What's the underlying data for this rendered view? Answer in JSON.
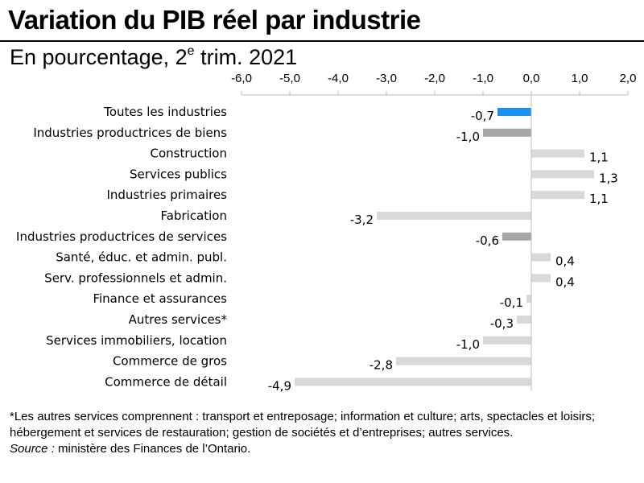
{
  "title": "Variation du PIB réel par industrie",
  "subtitle": {
    "prefix": "En pourcentage, 2",
    "superscript": "e",
    "suffix": " trim. 2021"
  },
  "colors": {
    "highlight": "#1e90ea",
    "aggregate": "#a6a6a6",
    "industry": "#d9d9d9",
    "axis": "#bfbfbf"
  },
  "chart_data": {
    "type": "bar",
    "orientation": "horizontal",
    "title": "Variation du PIB réel par industrie",
    "xlabel": "",
    "ylabel": "",
    "xlim": [
      -6.0,
      2.0
    ],
    "x_ticks": [
      "-6,0",
      "-5,0",
      "-4,0",
      "-3,0",
      "-2,0",
      "-1,0",
      "0,0",
      "1,0",
      "2,0"
    ],
    "x_tick_values": [
      -6,
      -5,
      -4,
      -3,
      -2,
      -1,
      0,
      1,
      2
    ],
    "grid": false,
    "legend": "none",
    "categories": [
      "Toutes les industries",
      "Industries productrices de biens",
      "Construction",
      "Services publics",
      "Industries primaires",
      "Fabrication",
      "Industries productrices de services",
      "Santé, éduc. et admin. publ.",
      "Serv. professionnels et admin.",
      "Finance et assurances",
      "Autres services*",
      "Services immobiliers, location",
      "Commerce de gros",
      "Commerce de détail"
    ],
    "values": [
      -0.7,
      -1.0,
      1.1,
      1.3,
      1.1,
      -3.2,
      -0.6,
      0.4,
      0.4,
      -0.1,
      -0.3,
      -1.0,
      -2.8,
      -4.9
    ],
    "value_labels": [
      "-0,7",
      "-1,0",
      "1,1",
      "1,3",
      "1,1",
      "-3,2",
      "-0,6",
      "0,4",
      "0,4",
      "-0,1",
      "-0,3",
      "-1,0",
      "-2,8",
      "-4,9"
    ],
    "bar_kind": [
      "highlight",
      "aggregate",
      "industry",
      "industry",
      "industry",
      "industry",
      "aggregate",
      "industry",
      "industry",
      "industry",
      "industry",
      "industry",
      "industry",
      "industry"
    ]
  },
  "footnote": {
    "text": "*Les autres services comprennent  : transport et entreposage; information et culture; arts, spectacles et loisirs; hébergement  et services de restauration; gestion de sociétés et d’entreprises; autres services.",
    "source_label": "Source :",
    "source_text": " ministère des Finances de l’Ontario."
  }
}
